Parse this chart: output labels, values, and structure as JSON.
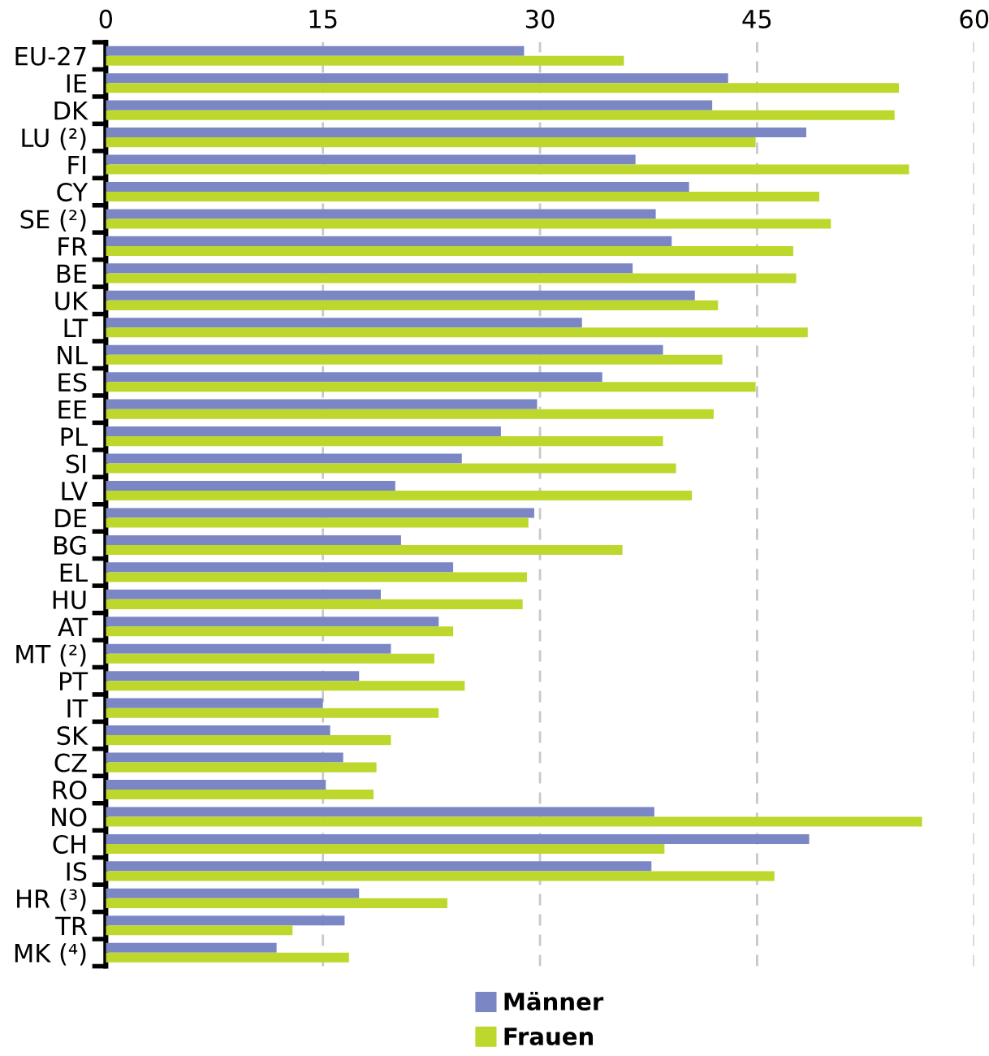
{
  "chart_data": {
    "type": "bar",
    "orientation": "horizontal",
    "categories": [
      "EU-27",
      "IE",
      "DK",
      "LU (²)",
      "FI",
      "CY",
      "SE (²)",
      "FR",
      "BE",
      "UK",
      "LT",
      "NL",
      "ES",
      "EE",
      "PL",
      "SI",
      "LV",
      "DE",
      "BG",
      "EL",
      "HU",
      "AT",
      "MT (²)",
      "PT",
      "IT",
      "SK",
      "CZ",
      "RO",
      "NO",
      "CH",
      "IS",
      "HR (³)",
      "TR",
      "MK (⁴)"
    ],
    "series": [
      {
        "name": "Männer",
        "color": "#7b86c4",
        "values": [
          28.9,
          43.0,
          41.9,
          48.4,
          36.6,
          40.3,
          38.0,
          39.1,
          36.4,
          40.7,
          32.9,
          38.5,
          34.3,
          29.8,
          27.3,
          24.6,
          20.0,
          29.6,
          20.4,
          24.0,
          19.0,
          23.0,
          19.7,
          17.5,
          15.0,
          15.5,
          16.4,
          15.2,
          37.9,
          48.6,
          37.7,
          17.5,
          16.5,
          11.8
        ]
      },
      {
        "name": "Frauen",
        "color": "#bed72c",
        "values": [
          35.8,
          54.8,
          54.5,
          44.9,
          55.5,
          49.3,
          50.1,
          47.5,
          47.7,
          42.3,
          48.5,
          42.6,
          44.9,
          42.0,
          38.5,
          39.4,
          40.5,
          29.2,
          35.7,
          29.1,
          28.8,
          24.0,
          22.7,
          24.8,
          23.0,
          19.7,
          18.7,
          18.5,
          56.4,
          38.6,
          46.2,
          23.6,
          12.9,
          16.8
        ]
      }
    ],
    "xlim": [
      0,
      60
    ],
    "xticks": [
      0,
      15,
      30,
      45,
      60
    ],
    "grid": "x",
    "legend": "bottom"
  }
}
